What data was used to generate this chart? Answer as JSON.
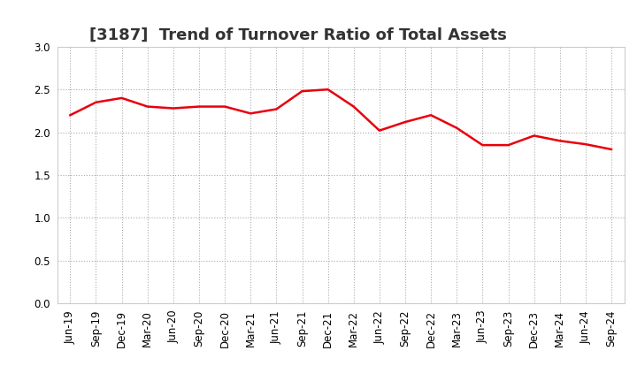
{
  "title": "[3187]  Trend of Turnover Ratio of Total Assets",
  "x_labels": [
    "Jun-19",
    "Sep-19",
    "Dec-19",
    "Mar-20",
    "Jun-20",
    "Sep-20",
    "Dec-20",
    "Mar-21",
    "Jun-21",
    "Sep-21",
    "Dec-21",
    "Mar-22",
    "Jun-22",
    "Sep-22",
    "Dec-22",
    "Mar-23",
    "Jun-23",
    "Sep-23",
    "Dec-23",
    "Mar-24",
    "Jun-24",
    "Sep-24"
  ],
  "values": [
    2.2,
    2.35,
    2.4,
    2.3,
    2.28,
    2.3,
    2.3,
    2.22,
    2.27,
    2.48,
    2.5,
    2.3,
    2.02,
    2.12,
    2.2,
    2.05,
    1.85,
    1.85,
    1.96,
    1.9,
    1.86,
    1.8
  ],
  "line_color": "#e8000d",
  "line_width": 1.8,
  "ylim": [
    0.0,
    3.0
  ],
  "yticks": [
    0.0,
    0.5,
    1.0,
    1.5,
    2.0,
    2.5,
    3.0
  ],
  "grid_color": "#aaaaaa",
  "grid_style": "dotted",
  "bg_color": "#ffffff",
  "title_fontsize": 13,
  "tick_fontsize": 8.5,
  "title_color": "#333333"
}
